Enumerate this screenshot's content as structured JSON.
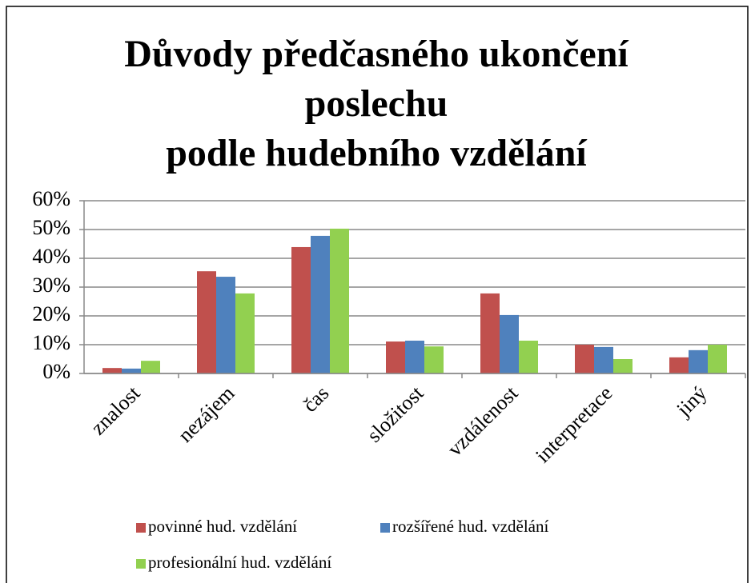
{
  "chart_data": {
    "type": "bar",
    "title": [
      "Důvody předčasného ukončení",
      "poslechu",
      "podle hudebního vzdělání"
    ],
    "categories": [
      "znalost",
      "nezájem",
      "čas",
      "složitost",
      "vzdálenost",
      "interpretace",
      "jiný"
    ],
    "series": [
      {
        "name": "povinné hud. vzdělání",
        "color": "#c0504d",
        "values": [
          1.9,
          35.5,
          43.9,
          11.1,
          27.8,
          10,
          5.6
        ]
      },
      {
        "name": "rozšířené hud. vzdělání",
        "color": "#4f81bd",
        "values": [
          1.7,
          33.6,
          47.8,
          11.4,
          20.3,
          9.2,
          8.1
        ]
      },
      {
        "name": "profesionální hud. vzdělání",
        "color": "#92d050",
        "values": [
          4.4,
          27.8,
          50.3,
          9.4,
          11.4,
          5,
          10
        ]
      }
    ],
    "ylim": [
      0,
      60
    ],
    "yticks": [
      {
        "value": 0,
        "label": "0%"
      },
      {
        "value": 10,
        "label": "10%"
      },
      {
        "value": 20,
        "label": "20%"
      },
      {
        "value": 30,
        "label": "30%"
      },
      {
        "value": 40,
        "label": "40%"
      },
      {
        "value": 50,
        "label": "50%"
      },
      {
        "value": 60,
        "label": "60%"
      }
    ],
    "grid": true
  }
}
